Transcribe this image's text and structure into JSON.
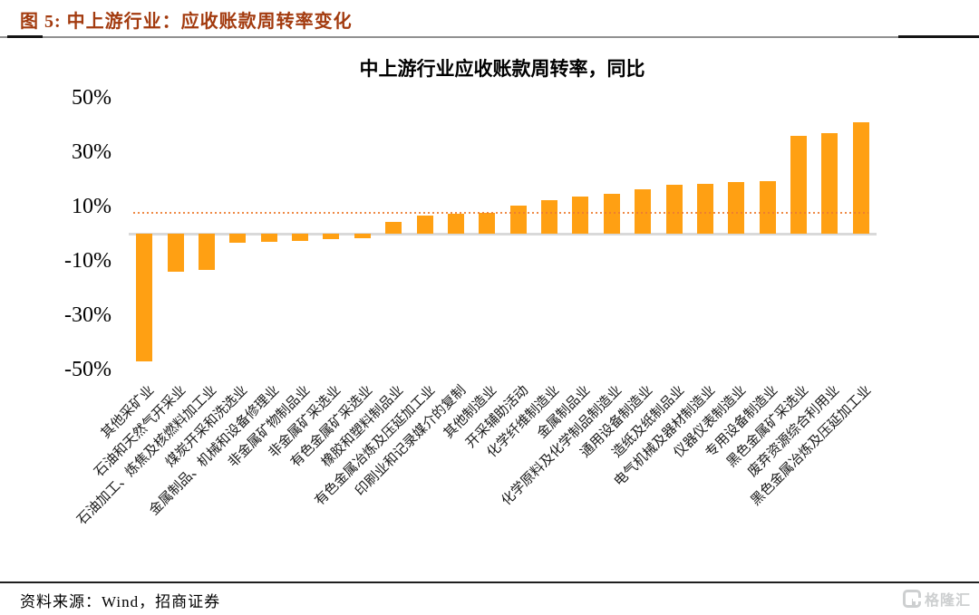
{
  "figure_header": {
    "label": "图 5:  中上游行业：应收账款周转率变化"
  },
  "chart_data": {
    "type": "bar",
    "title": "中上游行业应收账款周转率，同比",
    "unit": "%",
    "categories": [
      "其他采矿业",
      "石油和天然气开采业",
      "石油加工、炼焦及核燃料加工业",
      "煤炭开采和洗选业",
      "金属制品、机械和设备修理业",
      "非金属矿物制品业",
      "非金属矿采选业",
      "有色金属矿采选业",
      "橡胶和塑料制品业",
      "有色金属冶炼及压延加工业",
      "印刷业和记录媒介的复制",
      "其他制造业",
      "开采辅助活动",
      "化学纤维制造业",
      "金属制品业",
      "化学原料及化学制品制造业",
      "通用设备制造业",
      "造纸及纸制品业",
      "电气机械及器材制造业",
      "仪器仪表制造业",
      "专用设备制造业",
      "黑色金属矿采选业",
      "废弃资源综合利用业",
      "黑色金属冶炼及压延加工业"
    ],
    "values": [
      -47,
      -14,
      -13.4,
      -3.3,
      -3.1,
      -2.7,
      -1.9,
      -1.5,
      4.4,
      6.7,
      7.3,
      7.8,
      10.3,
      12.4,
      13.7,
      14.8,
      16.2,
      17.9,
      18.2,
      18.9,
      19.5,
      36,
      37,
      41
    ],
    "ylim": [
      -50,
      50
    ],
    "yticks": [
      50,
      30,
      10,
      -10,
      -30,
      -50
    ],
    "ytick_labels": [
      "50%",
      "30%",
      "10%",
      "-10%",
      "-30%",
      "-50%"
    ],
    "reference_line_value": 8,
    "grid": false,
    "legend": "none",
    "bar_color": "#FFA013",
    "reference_line_color": "#ED7D31",
    "baseline_color": "#D9D9D9"
  },
  "footer": {
    "source": "资料来源：Wind，招商证券"
  },
  "watermark": {
    "icon": "gelonghui-logo",
    "text": "格隆汇"
  }
}
